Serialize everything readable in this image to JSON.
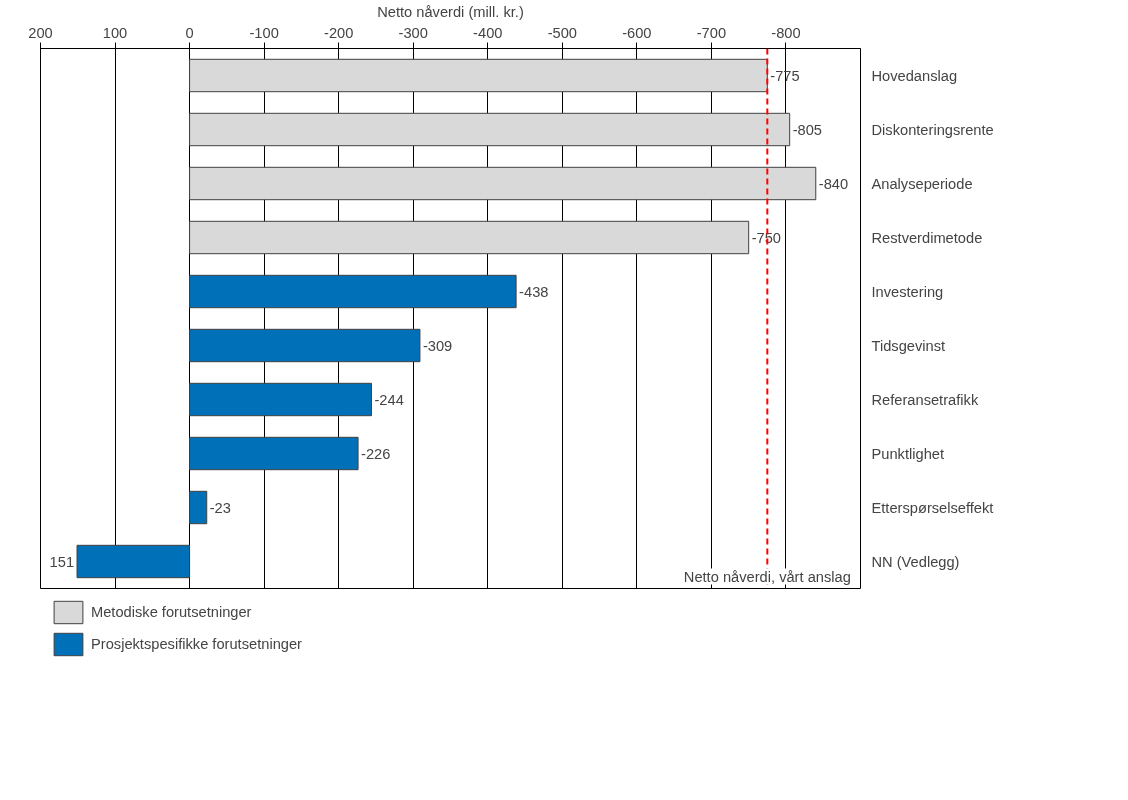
{
  "chart_data": {
    "type": "bar",
    "orientation": "horizontal",
    "xlabel": "Netto nåverdi (mill. kr.)",
    "categories": [
      "Hovedanslag",
      "Diskonteringsrente",
      "Analyseperiode",
      "Restverdimetode",
      "Investering",
      "Tidsgevinst",
      "Referansetrafikk",
      "Punktlighet",
      "Etterspørselseffekt",
      "NN (Vedlegg)"
    ],
    "series": [
      {
        "name": "Metodiske forutsetninger",
        "color": "#d9d9d9",
        "values": [
          -775,
          -805,
          -840,
          -750,
          null,
          null,
          null,
          null,
          null,
          null
        ]
      },
      {
        "name": "Prosjektspesifikke forutsetninger",
        "color": "#0070b8",
        "values": [
          null,
          null,
          null,
          null,
          -438,
          -309,
          -244,
          -226,
          -23,
          151
        ]
      }
    ],
    "xlim": [
      200,
      -900
    ],
    "xticks": [
      200,
      100,
      0,
      -100,
      -200,
      -300,
      -400,
      -500,
      -600,
      -700,
      -800
    ],
    "grid": "x",
    "data_labels": true,
    "legend": "bottom left",
    "ref_lines": [
      {
        "axis": "x",
        "value": -775,
        "label": "Netto nåverdi, vårt anslag",
        "color": "#ff0000",
        "line_style": "dashed"
      }
    ]
  }
}
